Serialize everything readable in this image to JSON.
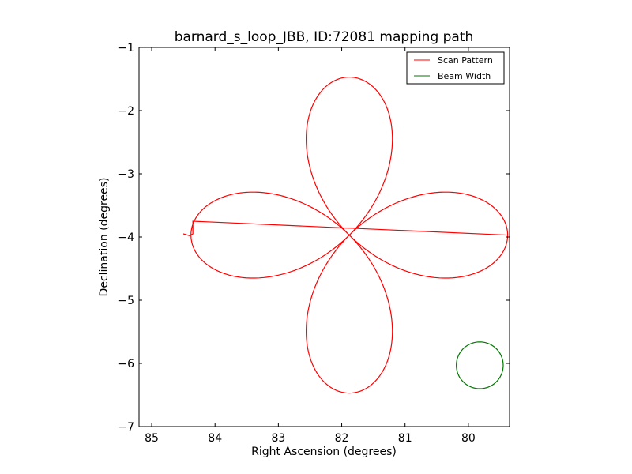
{
  "chart_data": {
    "type": "line",
    "title": "barnard_s_loop_JBB, ID:72081 mapping path",
    "xlabel": "Right Ascension (degrees)",
    "ylabel": "Declination (degrees)",
    "xlim": [
      85.2,
      79.35
    ],
    "ylim": [
      -7,
      -1
    ],
    "x_inverted": true,
    "xticks": [
      85,
      84,
      83,
      82,
      81,
      80
    ],
    "xtick_labels": [
      "85",
      "84",
      "83",
      "82",
      "81",
      "80"
    ],
    "yticks": [
      -1,
      -2,
      -3,
      -4,
      -5,
      -6,
      -7
    ],
    "ytick_labels": [
      "−1",
      "−2",
      "−3",
      "−4",
      "−5",
      "−6",
      "−7"
    ],
    "grid": false,
    "legend_position": "top-right",
    "series": [
      {
        "name": "Scan Pattern",
        "color": "#ff0000",
        "center": [
          81.88,
          -3.97
        ],
        "petal_radius": 2.5,
        "lead_in": [
          [
            84.5,
            -3.95
          ],
          [
            84.4,
            -3.98
          ],
          [
            84.35,
            -3.95
          ],
          [
            84.35,
            -3.75
          ]
        ],
        "samples": 720
      },
      {
        "name": "Beam Width",
        "color": "#007700",
        "center": [
          79.82,
          -6.03
        ],
        "radius": 0.37,
        "samples": 120
      }
    ]
  }
}
